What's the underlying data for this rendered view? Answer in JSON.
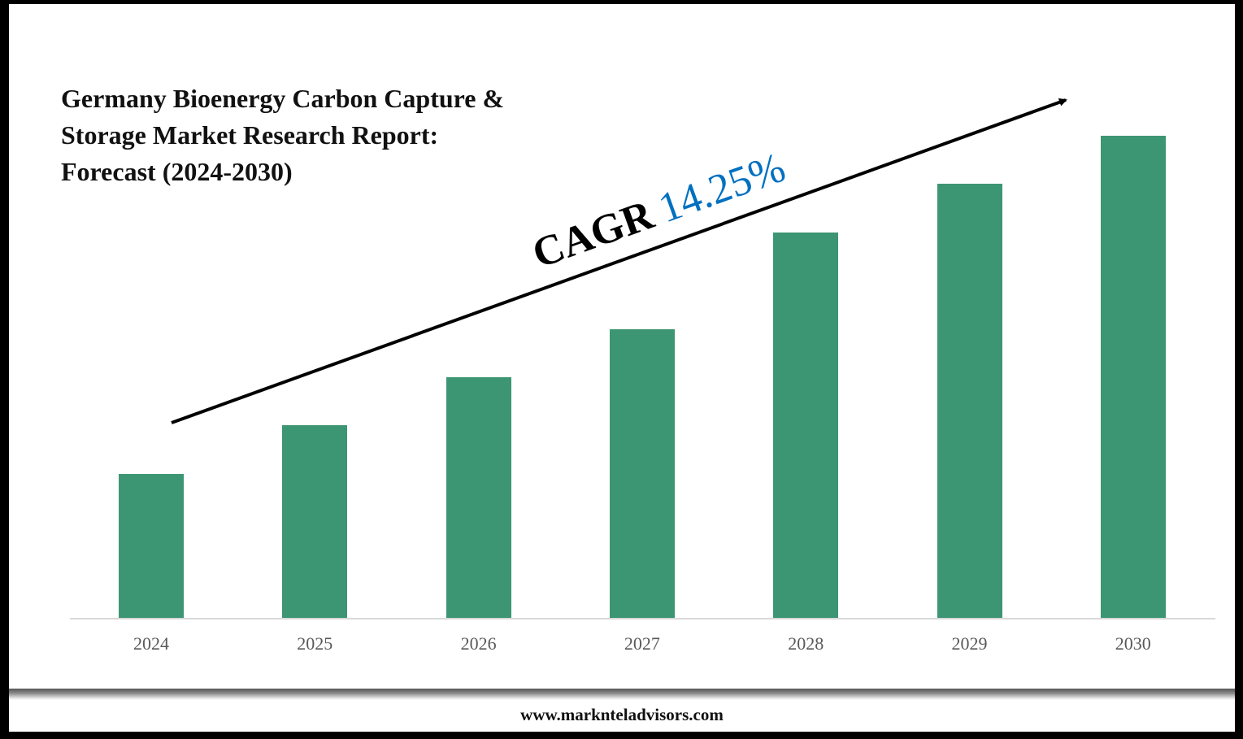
{
  "title_lines": [
    "Germany Bioenergy Carbon Capture &",
    "Storage Market Research Report:",
    "Forecast (2024-2030)"
  ],
  "cagr": {
    "label": "CAGR",
    "value": "14.25%",
    "value_color": "#0070c0"
  },
  "footer": {
    "website": "www.marknteladvisors.com"
  },
  "colors": {
    "bar": "#3d9673",
    "axis": "#d9d9d9",
    "tick_label": "#595959"
  },
  "chart_data": {
    "type": "bar",
    "title": "Germany Bioenergy Carbon Capture & Storage Market Research Report: Forecast (2024-2030)",
    "categories": [
      "2024",
      "2025",
      "2026",
      "2027",
      "2028",
      "2029",
      "2030"
    ],
    "values": [
      177,
      237,
      296,
      355,
      474,
      534,
      593
    ],
    "values_note": "relative bar heights in pixels (no y-axis scale shown)",
    "xlabel": "",
    "ylabel": "",
    "grid": false,
    "legend": null,
    "annotations": [
      "CAGR 14.25%",
      "upward trend arrow"
    ]
  }
}
